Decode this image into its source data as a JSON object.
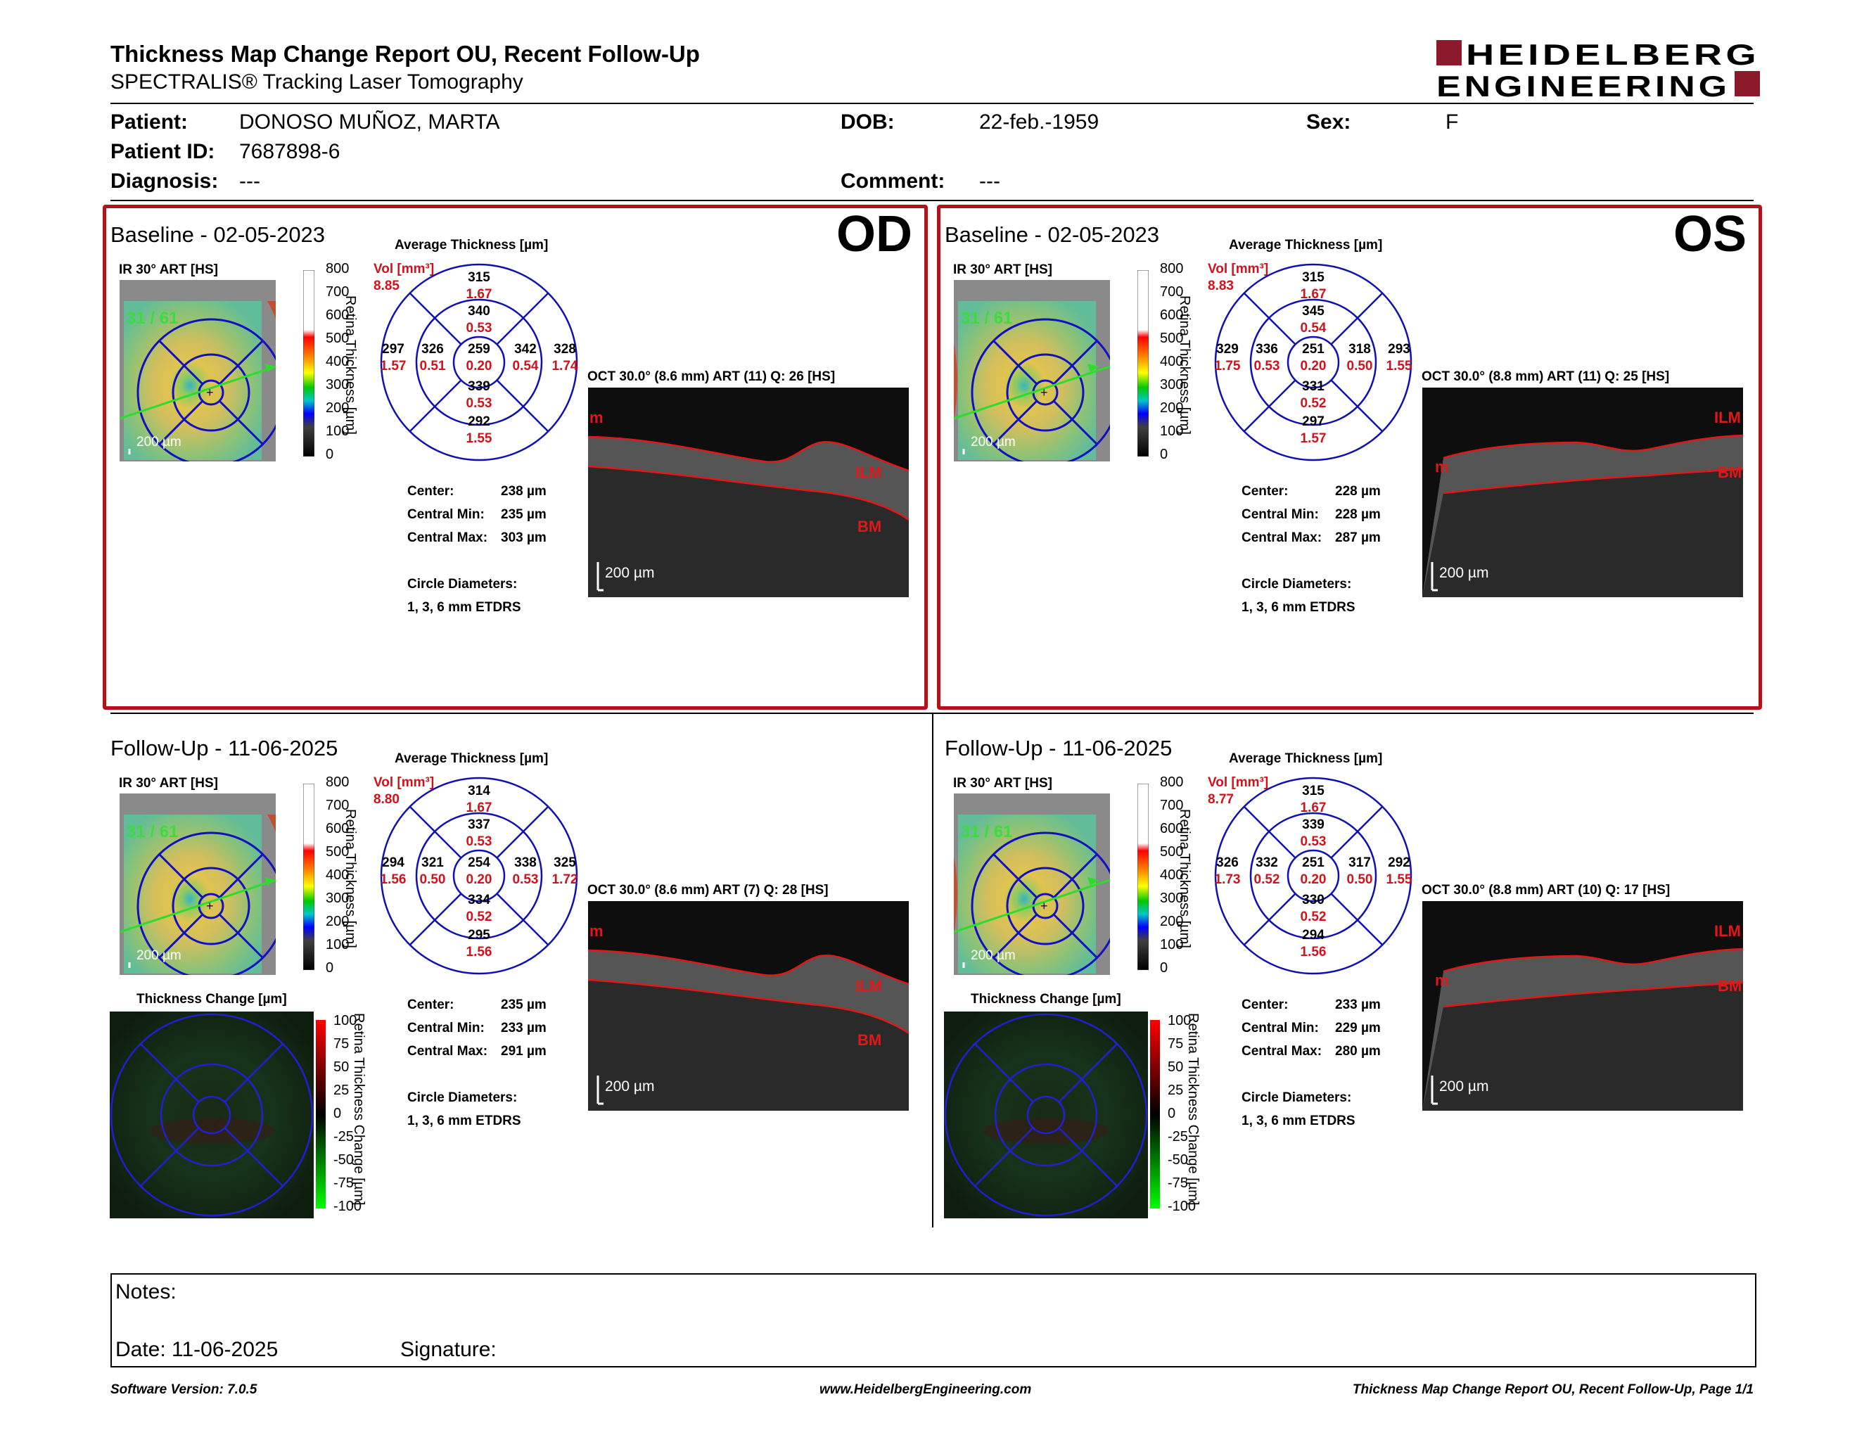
{
  "header": {
    "title": "Thickness Map Change Report OU, Recent Follow-Up",
    "subtitle": "SPECTRALIS® Tracking Laser Tomography",
    "logo_line1": "HEIDELBERG",
    "logo_line2": "ENGINEERING",
    "brand_color": "#8b1a2b"
  },
  "patient": {
    "patient_label": "Patient:",
    "patient_value": "DONOSO MUÑOZ, MARTA",
    "id_label": "Patient ID:",
    "id_value": "7687898-6",
    "diagnosis_label": "Diagnosis:",
    "diagnosis_value": "---",
    "dob_label": "DOB:",
    "dob_value": "22-feb.-1959",
    "comment_label": "Comment:",
    "comment_value": "---",
    "sex_label": "Sex:",
    "sex_value": "F"
  },
  "common": {
    "ir_label": "IR 30° ART [HS]",
    "avg_title": "Average Thickness [µm]",
    "vol_label": "Vol [mm³]",
    "scale_200": "200 µm",
    "frame": "31 / 61",
    "center_label": "Center:",
    "cmin_label": "Central Min:",
    "cmax_label": "Central Max:",
    "circle_label": "Circle Diameters:",
    "circle_value": "1, 3, 6 mm ETDRS",
    "cb_ticks": [
      "800",
      "700",
      "600",
      "500",
      "400",
      "300",
      "200",
      "100",
      "0"
    ],
    "cb_title": "Retina Thickness [µm]",
    "chg_title": "Thickness Change [µm]",
    "chg_ticks": [
      "100",
      "75",
      "50",
      "25",
      "0",
      "-25",
      "-50",
      "-75",
      "-100"
    ],
    "chg_cb_title": "Retina Thickness Change [µm]",
    "ilm": "ILM",
    "bm": "BM",
    "m": "m"
  },
  "od_base": {
    "eye": "OD",
    "title": "Baseline - 02-05-2023",
    "vol": "8.85",
    "oct_title": "OCT 30.0° (8.6 mm) ART (11) Q: 26 [HS]",
    "center": "238 µm",
    "cmin": "235 µm",
    "cmax": "303 µm",
    "s_outer": [
      "315",
      "1.67"
    ],
    "s_inner": [
      "340",
      "0.53"
    ],
    "c": [
      "259",
      "0.20"
    ],
    "i_inner": [
      "339",
      "0.53"
    ],
    "i_outer": [
      "292",
      "1.55"
    ],
    "l_outer": [
      "297",
      "1.57"
    ],
    "l_inner": [
      "326",
      "0.51"
    ],
    "r_inner": [
      "342",
      "0.54"
    ],
    "r_outer": [
      "328",
      "1.74"
    ]
  },
  "os_base": {
    "eye": "OS",
    "title": "Baseline - 02-05-2023",
    "vol": "8.83",
    "oct_title": "OCT 30.0° (8.8 mm) ART (11) Q: 25 [HS]",
    "center": "228 µm",
    "cmin": "228 µm",
    "cmax": "287 µm",
    "s_outer": [
      "315",
      "1.67"
    ],
    "s_inner": [
      "345",
      "0.54"
    ],
    "c": [
      "251",
      "0.20"
    ],
    "i_inner": [
      "331",
      "0.52"
    ],
    "i_outer": [
      "297",
      "1.57"
    ],
    "l_outer": [
      "329",
      "1.75"
    ],
    "l_inner": [
      "336",
      "0.53"
    ],
    "r_inner": [
      "318",
      "0.50"
    ],
    "r_outer": [
      "293",
      "1.55"
    ]
  },
  "od_fu": {
    "title": "Follow-Up - 11-06-2025",
    "vol": "8.80",
    "oct_title": "OCT 30.0° (8.6 mm) ART (7) Q: 28 [HS]",
    "center": "235 µm",
    "cmin": "233 µm",
    "cmax": "291 µm",
    "s_outer": [
      "314",
      "1.67"
    ],
    "s_inner": [
      "337",
      "0.53"
    ],
    "c": [
      "254",
      "0.20"
    ],
    "i_inner": [
      "334",
      "0.52"
    ],
    "i_outer": [
      "295",
      "1.56"
    ],
    "l_outer": [
      "294",
      "1.56"
    ],
    "l_inner": [
      "321",
      "0.50"
    ],
    "r_inner": [
      "338",
      "0.53"
    ],
    "r_outer": [
      "325",
      "1.72"
    ]
  },
  "os_fu": {
    "title": "Follow-Up - 11-06-2025",
    "vol": "8.77",
    "oct_title": "OCT 30.0° (8.8 mm) ART (10) Q: 17 [HS]",
    "center": "233 µm",
    "cmin": "229 µm",
    "cmax": "280 µm",
    "s_outer": [
      "315",
      "1.67"
    ],
    "s_inner": [
      "339",
      "0.53"
    ],
    "c": [
      "251",
      "0.20"
    ],
    "i_inner": [
      "330",
      "0.52"
    ],
    "i_outer": [
      "294",
      "1.56"
    ],
    "l_outer": [
      "326",
      "1.73"
    ],
    "l_inner": [
      "332",
      "0.52"
    ],
    "r_inner": [
      "317",
      "0.50"
    ],
    "r_outer": [
      "292",
      "1.55"
    ]
  },
  "notes": {
    "notes_label": "Notes:",
    "date_label": "Date: 11-06-2025",
    "signature_label": "Signature:"
  },
  "footer": {
    "version": "Software Version: 7.0.5",
    "url": "www.HeidelbergEngineering.com",
    "page": "Thickness Map Change Report OU, Recent Follow-Up, Page 1/1"
  }
}
